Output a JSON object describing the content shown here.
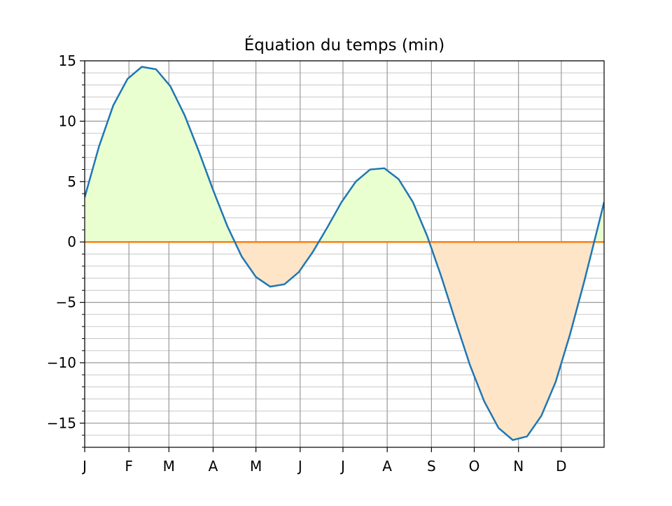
{
  "chart_data": {
    "type": "area",
    "title": "Équation du temps (min)",
    "x": [
      0,
      10,
      20,
      30,
      40,
      50,
      60,
      70,
      80,
      90,
      100,
      110,
      120,
      130,
      140,
      150,
      160,
      170,
      180,
      190,
      200,
      210,
      220,
      230,
      240,
      250,
      260,
      270,
      280,
      290,
      300,
      310,
      320,
      330,
      340,
      350,
      360,
      364
    ],
    "series": [
      {
        "color": "#1f77b4",
        "positive_fill": "#eaffd0",
        "negative_fill": "#ffe5c8",
        "values": [
          3.7,
          7.9,
          11.3,
          13.5,
          14.5,
          14.3,
          12.9,
          10.5,
          7.5,
          4.3,
          1.3,
          -1.2,
          -2.9,
          -3.7,
          -3.5,
          -2.5,
          -0.8,
          1.2,
          3.3,
          5.0,
          6.0,
          6.1,
          5.2,
          3.3,
          0.5,
          -2.9,
          -6.6,
          -10.2,
          -13.2,
          -15.4,
          -16.4,
          -16.1,
          -14.4,
          -11.6,
          -7.7,
          -3.3,
          1.4,
          3.3
        ]
      }
    ],
    "hline": {
      "value": 0,
      "color": "#ff7f0e"
    },
    "xlim": [
      0,
      364
    ],
    "xticks": [
      {
        "value": 0,
        "label": "J"
      },
      {
        "value": 31,
        "label": "F"
      },
      {
        "value": 59,
        "label": "M"
      },
      {
        "value": 90,
        "label": "A"
      },
      {
        "value": 120,
        "label": "M"
      },
      {
        "value": 151,
        "label": "J"
      },
      {
        "value": 181,
        "label": "J"
      },
      {
        "value": 212,
        "label": "A"
      },
      {
        "value": 243,
        "label": "S"
      },
      {
        "value": 273,
        "label": "O"
      },
      {
        "value": 304,
        "label": "N"
      },
      {
        "value": 334,
        "label": "D"
      }
    ],
    "ylim": [
      -17,
      15
    ],
    "yticks": [
      {
        "value": -15,
        "label": "−15"
      },
      {
        "value": -10,
        "label": "−10"
      },
      {
        "value": -5,
        "label": "−5"
      },
      0,
      5,
      10,
      15
    ],
    "yminorticks": [
      -17,
      -16,
      -14,
      -13,
      -12,
      -11,
      -9,
      -8,
      -7,
      -6,
      -4,
      -3,
      -2,
      -1,
      1,
      2,
      3,
      4,
      6,
      7,
      8,
      9,
      11,
      12,
      13,
      14
    ],
    "grid": true
  }
}
